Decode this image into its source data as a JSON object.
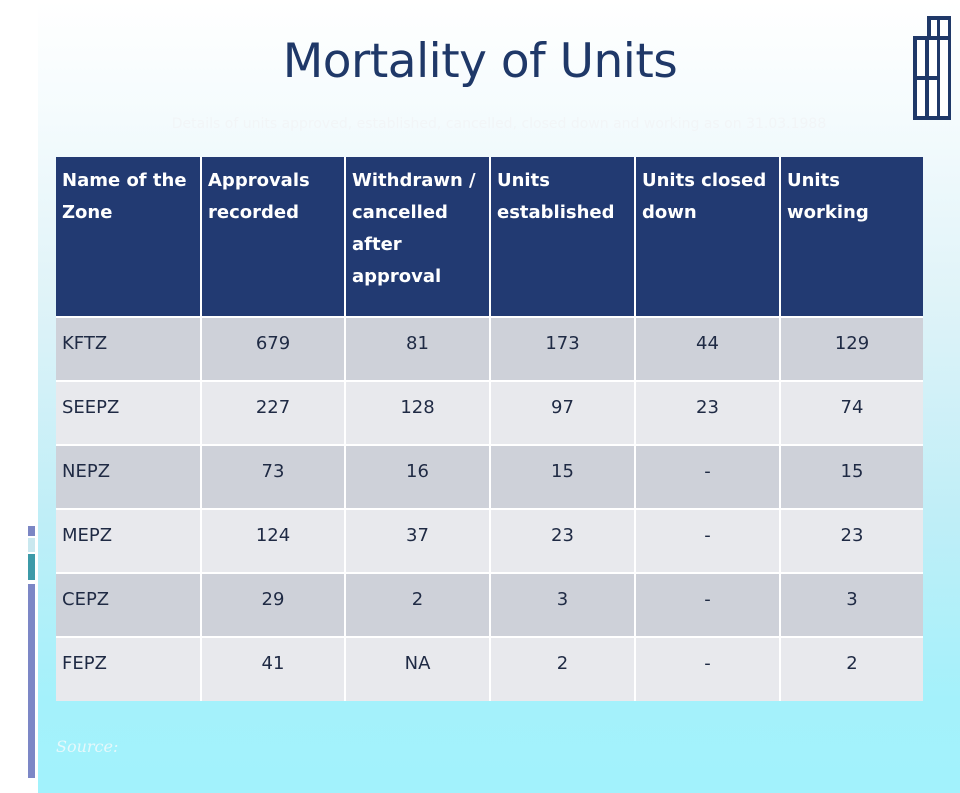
{
  "slide": {
    "title": "Mortality of Units",
    "subtitle": "Details of units approved, established, cancelled, closed down and working as on 31.03.1988",
    "source_label": "Source:"
  },
  "table": {
    "headers": [
      "Name of the Zone",
      "Approvals recorded",
      "Withdrawn / cancelled after approval",
      "Units established",
      "Units closed down",
      "Units working"
    ],
    "rows": [
      [
        "KFTZ",
        "679",
        "81",
        "173",
        "44",
        "129"
      ],
      [
        "SEEPZ",
        "227",
        "128",
        "97",
        "23",
        "74"
      ],
      [
        "NEPZ",
        "73",
        "16",
        "15",
        "-",
        "15"
      ],
      [
        "MEPZ",
        "124",
        "37",
        "23",
        "-",
        "23"
      ],
      [
        "CEPZ",
        "29",
        "2",
        "3",
        "-",
        "3"
      ],
      [
        "FEPZ",
        "41",
        "NA",
        "2",
        "-",
        "2"
      ]
    ]
  },
  "colors": {
    "title": "#1f3868",
    "header_bg": "#223a72",
    "row_dark": "#ced1d9",
    "row_light": "#e8e9ed",
    "background_bottom": "#a2f2fc"
  },
  "icons": {
    "corner": "window-panes-icon"
  }
}
